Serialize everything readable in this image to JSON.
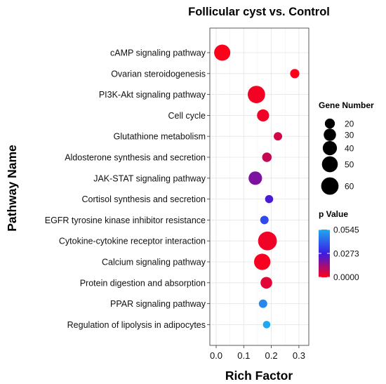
{
  "chart_data": {
    "type": "scatter",
    "title": "Follicular cyst vs. Control",
    "xlabel": "Rich Factor",
    "ylabel": "Pathway Name",
    "xlim": [
      -0.02,
      0.33
    ],
    "xticks": [
      "0.0",
      "0.1",
      "0.2",
      "0.3"
    ],
    "xtick_values": [
      0.0,
      0.1,
      0.2,
      0.3
    ],
    "grid": true,
    "legend_placement": "right",
    "categories": [
      "cAMP signaling pathway",
      "Ovarian steroidogenesis",
      "PI3K-Akt signaling pathway",
      "Cell cycle",
      "Glutathione metabolism",
      "Aldosterone synthesis and secretion",
      "JAK-STAT signaling pathway",
      "Cortisol synthesis and secretion",
      "EGFR tyrosine kinase inhibitor resistance",
      "Cytokine-cytokine receptor interaction",
      "Calcium signaling pathway",
      "Protein digestion and absorption",
      "PPAR signaling pathway",
      "Regulation of lipolysis in adipocytes"
    ],
    "points": [
      {
        "pathway": "cAMP signaling pathway",
        "rich_factor": 0.022,
        "gene_number": 52,
        "p_value": 0.0001
      },
      {
        "pathway": "Ovarian steroidogenesis",
        "rich_factor": 0.285,
        "gene_number": 17,
        "p_value": 0.0002
      },
      {
        "pathway": "PI3K-Akt signaling pathway",
        "rich_factor": 0.146,
        "gene_number": 60,
        "p_value": 0.0015
      },
      {
        "pathway": "Cell cycle",
        "rich_factor": 0.17,
        "gene_number": 29,
        "p_value": 0.002
      },
      {
        "pathway": "Glutathione metabolism",
        "rich_factor": 0.224,
        "gene_number": 14,
        "p_value": 0.006
      },
      {
        "pathway": "Aldosterone synthesis and secretion",
        "rich_factor": 0.184,
        "gene_number": 18,
        "p_value": 0.008
      },
      {
        "pathway": "JAK-STAT signaling pathway",
        "rich_factor": 0.142,
        "gene_number": 36,
        "p_value": 0.018
      },
      {
        "pathway": "Cortisol synthesis and secretion",
        "rich_factor": 0.192,
        "gene_number": 13,
        "p_value": 0.025
      },
      {
        "pathway": "EGFR tyrosine kinase inhibitor resistance",
        "rich_factor": 0.175,
        "gene_number": 14,
        "p_value": 0.036
      },
      {
        "pathway": "Cytokine-cytokine receptor interaction",
        "rich_factor": 0.186,
        "gene_number": 70,
        "p_value": 0.002
      },
      {
        "pathway": "Calcium signaling pathway",
        "rich_factor": 0.167,
        "gene_number": 53,
        "p_value": 0.001
      },
      {
        "pathway": "Protein digestion and absorption",
        "rich_factor": 0.182,
        "gene_number": 27,
        "p_value": 0.004
      },
      {
        "pathway": "PPAR signaling pathway",
        "rich_factor": 0.17,
        "gene_number": 14,
        "p_value": 0.048
      },
      {
        "pathway": "Regulation of lipolysis in adipocytes",
        "rich_factor": 0.183,
        "gene_number": 11,
        "p_value": 0.0545
      }
    ],
    "size_legend": {
      "title": "Gene Number",
      "values": [
        20,
        30,
        40,
        50,
        60
      ],
      "labels": [
        "20",
        "30",
        "40",
        "50",
        "60"
      ]
    },
    "color_legend": {
      "title": "p Value",
      "min": 0.0,
      "max": 0.0545,
      "labels": [
        "0.0545",
        "0.0273",
        "0.0000"
      ],
      "label_values": [
        0.0545,
        0.0273,
        0.0
      ],
      "colors": {
        "high": "#1fa8ee",
        "mid": "#3b1ce6",
        "low": "#ff0018"
      }
    }
  }
}
